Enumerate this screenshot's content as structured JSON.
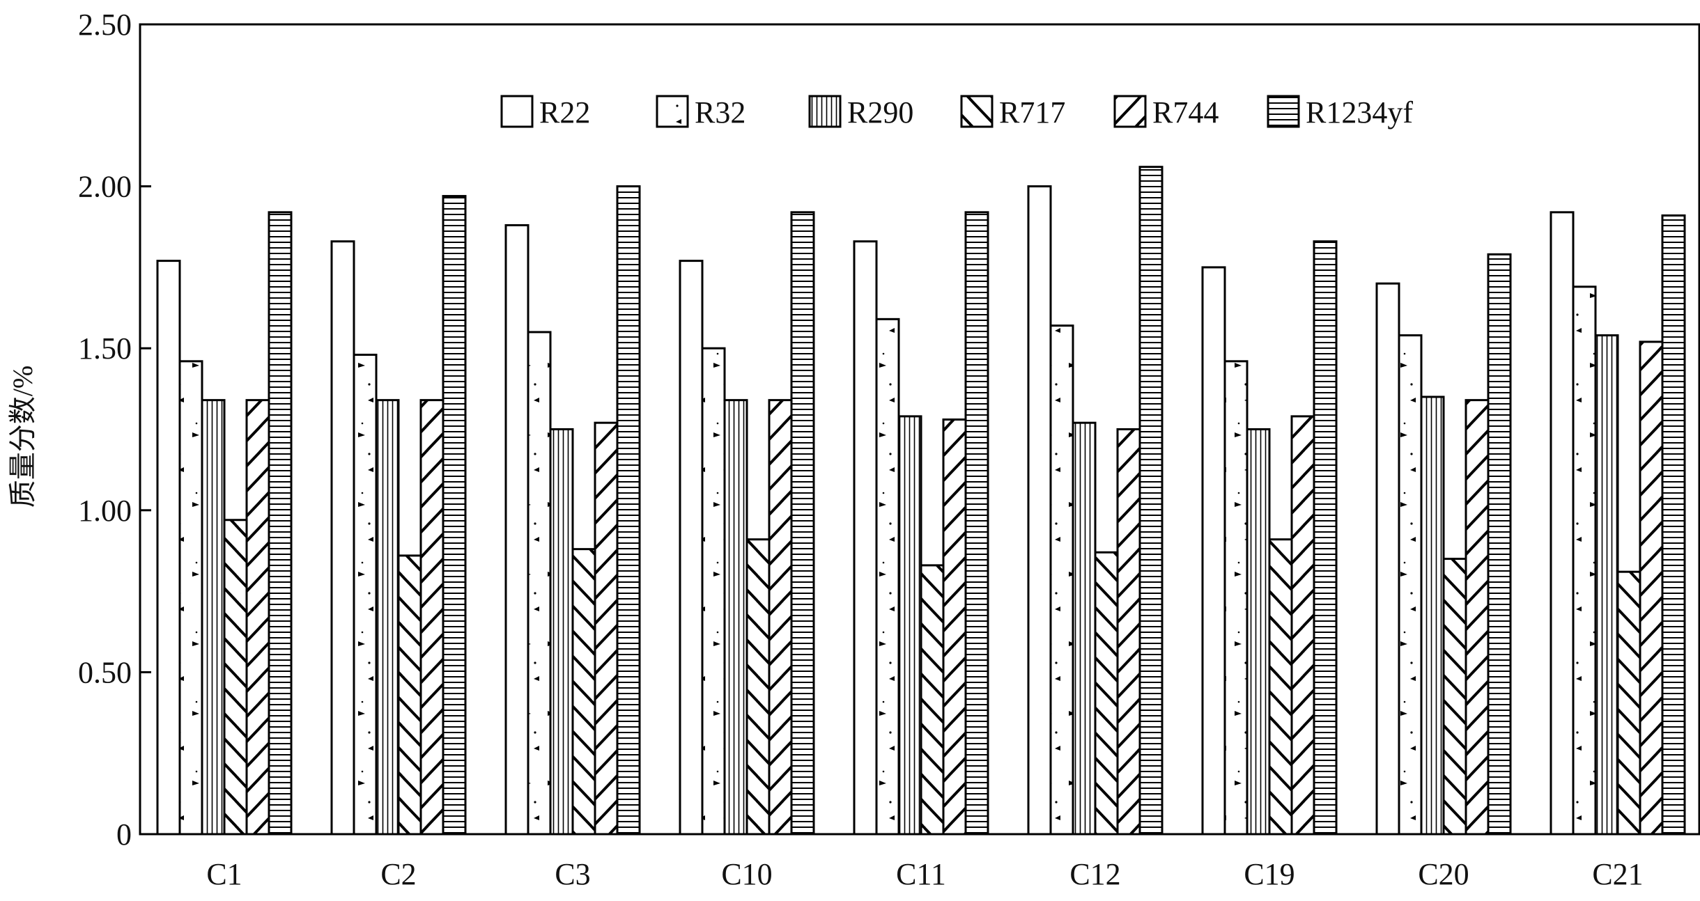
{
  "chart_data": {
    "type": "bar",
    "title": "",
    "xlabel": "",
    "ylabel": "质量分数/%",
    "ylim": [
      0,
      2.5
    ],
    "yticks": [
      "0",
      "0.50",
      "1.00",
      "1.50",
      "2.00",
      "2.50"
    ],
    "grid": false,
    "legend_position": "top-center",
    "categories": [
      "C1",
      "C2",
      "C3",
      "C10",
      "C11",
      "C12",
      "C19",
      "C20",
      "C21"
    ],
    "series": [
      {
        "name": "R22",
        "pattern": "empty",
        "values": [
          1.77,
          1.83,
          1.88,
          1.77,
          1.83,
          2.0,
          1.75,
          1.7,
          1.92
        ]
      },
      {
        "name": "R32",
        "pattern": "dots",
        "values": [
          1.46,
          1.48,
          1.55,
          1.5,
          1.59,
          1.57,
          1.46,
          1.54,
          1.69
        ]
      },
      {
        "name": "R290",
        "pattern": "vertical-lines",
        "values": [
          1.34,
          1.34,
          1.25,
          1.34,
          1.29,
          1.27,
          1.25,
          1.35,
          1.54
        ]
      },
      {
        "name": "R717",
        "pattern": "backslash-hatch",
        "values": [
          0.97,
          0.86,
          0.88,
          0.91,
          0.83,
          0.87,
          0.91,
          0.85,
          0.81
        ]
      },
      {
        "name": "R744",
        "pattern": "slash-hatch",
        "values": [
          1.34,
          1.34,
          1.27,
          1.34,
          1.28,
          1.25,
          1.29,
          1.34,
          1.52
        ]
      },
      {
        "name": "R1234yf",
        "pattern": "horizontal-lines",
        "values": [
          1.92,
          1.97,
          2.0,
          1.92,
          1.92,
          2.06,
          1.83,
          1.79,
          1.91
        ]
      }
    ],
    "colors": {
      "stroke": "#000000",
      "fill": "#ffffff"
    }
  }
}
